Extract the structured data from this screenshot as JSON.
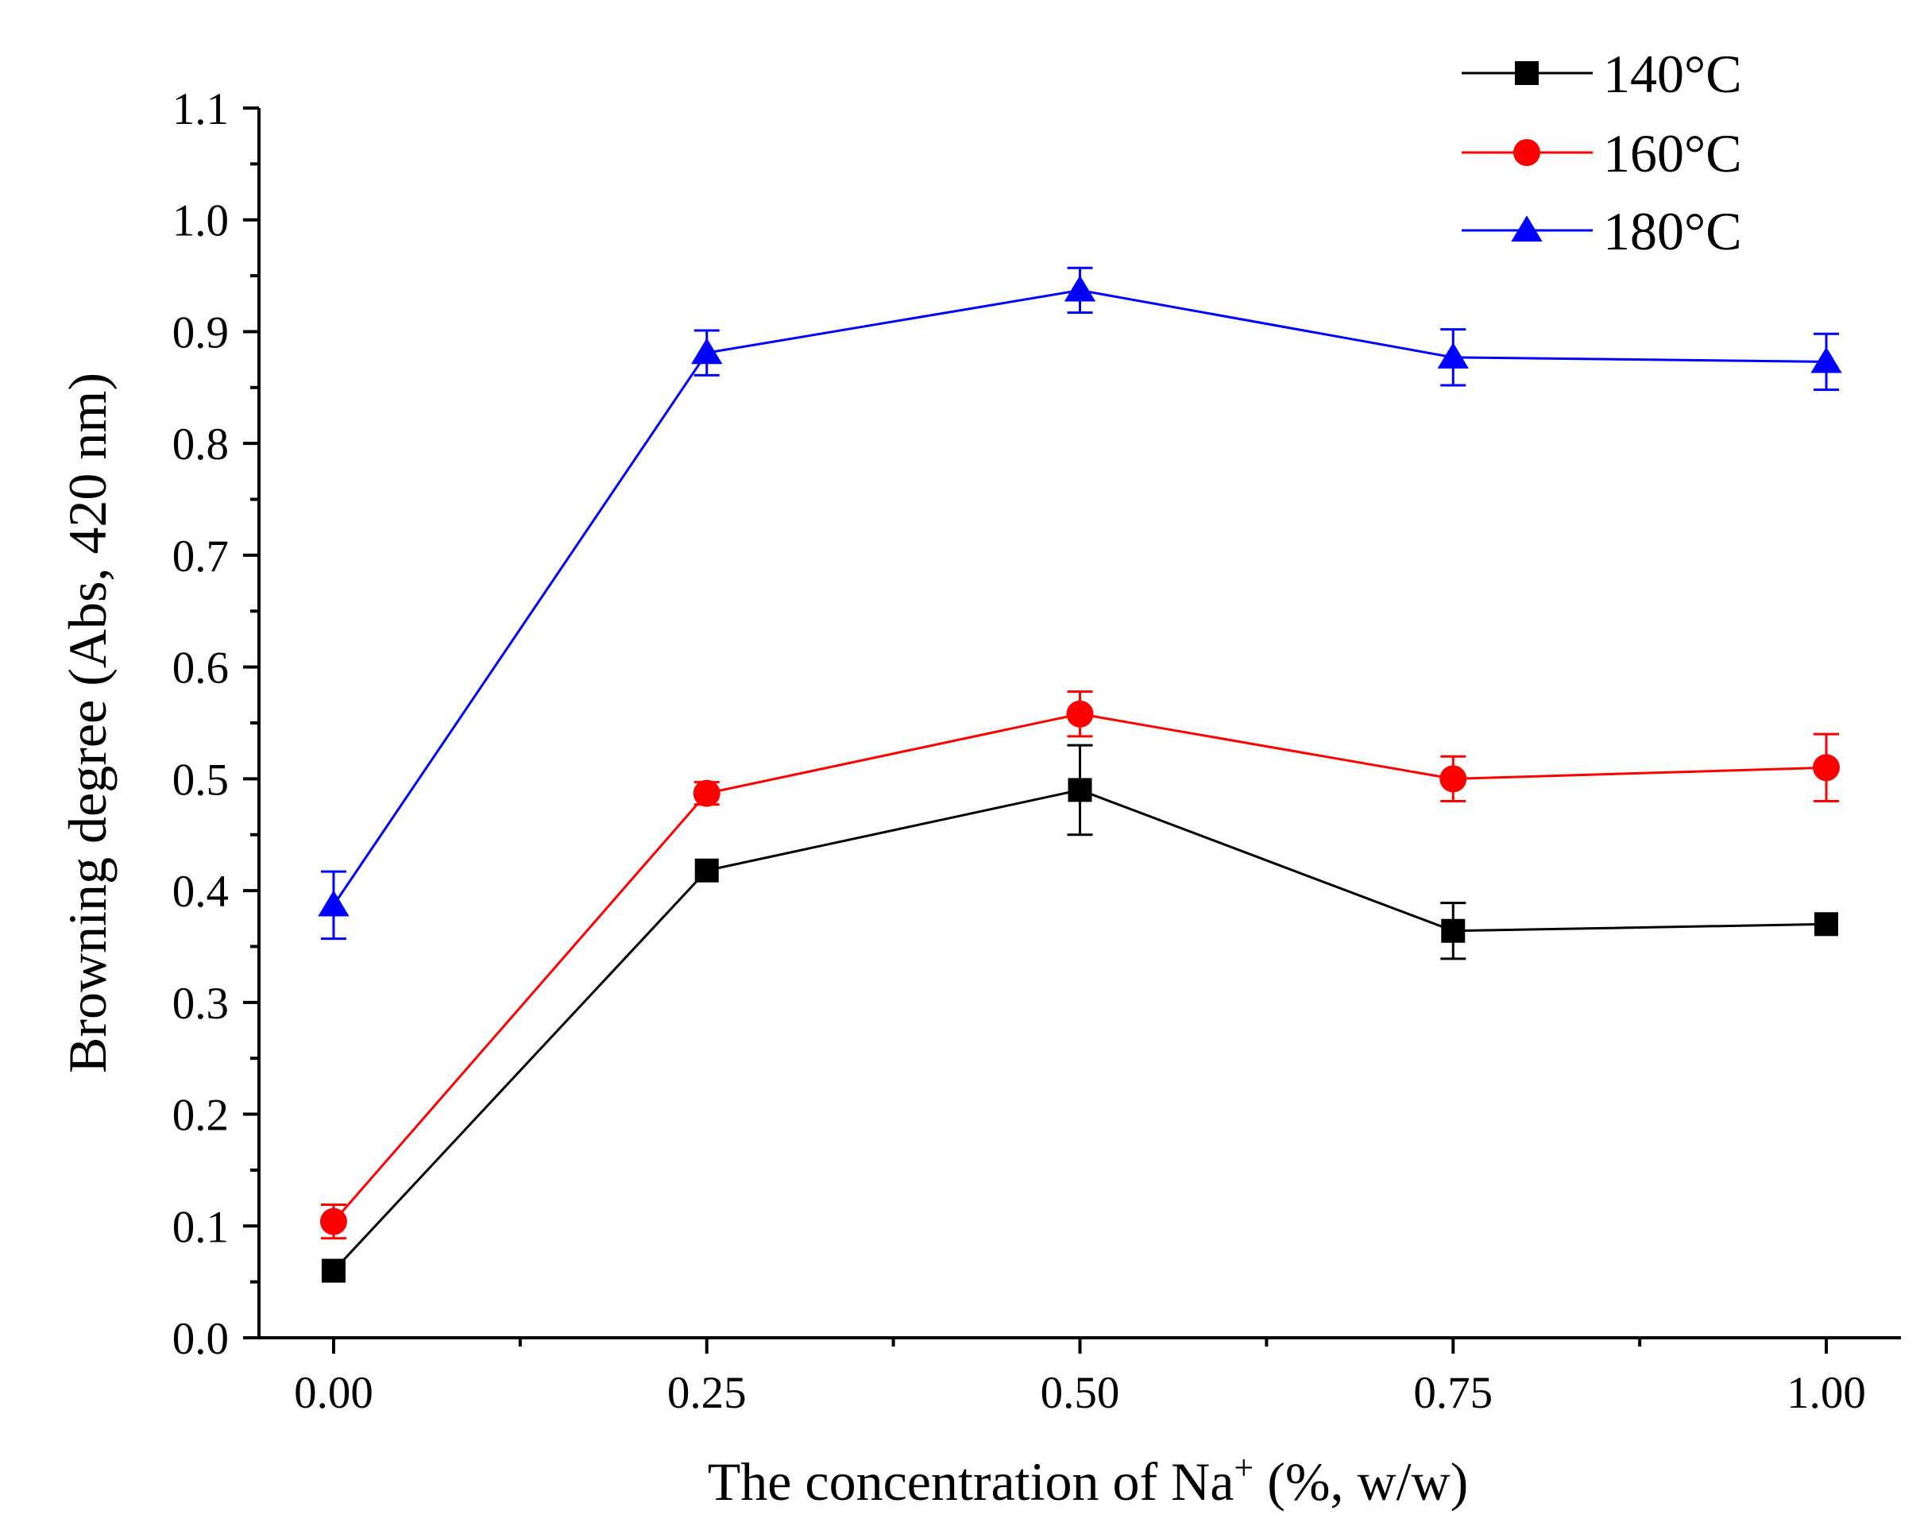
{
  "chart_data": {
    "type": "line",
    "title": "",
    "xlabel": "The concentration of Na⁺ (%, w/w)",
    "xlabel_main": "The concentration of Na",
    "xlabel_sup": "+",
    "xlabel_tail": " (%, w/w)",
    "ylabel": "Browning degree (Abs, 420 nm)",
    "x": [
      0.0,
      0.25,
      0.5,
      0.75,
      1.0
    ],
    "x_tick_labels": [
      "0.00",
      "0.25",
      "0.50",
      "0.75",
      "1.00"
    ],
    "y_tick_values": [
      0.0,
      0.1,
      0.2,
      0.3,
      0.4,
      0.5,
      0.6,
      0.7,
      0.8,
      0.9,
      1.0,
      1.1
    ],
    "y_tick_labels": [
      "0.0",
      "0.1",
      "0.2",
      "0.3",
      "0.4",
      "0.5",
      "0.6",
      "0.7",
      "0.8",
      "0.9",
      "1.0",
      "1.1"
    ],
    "xlim": [
      -0.05,
      1.05
    ],
    "ylim": [
      0.0,
      1.1
    ],
    "grid": false,
    "legend_position": "top-right",
    "series": [
      {
        "name": "140°C",
        "color": "#000000",
        "marker": "square",
        "values": [
          0.06,
          0.418,
          0.49,
          0.364,
          0.37
        ],
        "errors": [
          0.0,
          0.0,
          0.04,
          0.025,
          0.0
        ]
      },
      {
        "name": "160°C",
        "color": "#ff0000",
        "marker": "circle",
        "values": [
          0.104,
          0.487,
          0.558,
          0.5,
          0.51
        ],
        "errors": [
          0.015,
          0.01,
          0.02,
          0.02,
          0.03
        ]
      },
      {
        "name": "180°C",
        "color": "#0000ff",
        "marker": "triangle",
        "values": [
          0.387,
          0.881,
          0.937,
          0.877,
          0.873
        ],
        "errors": [
          0.03,
          0.02,
          0.02,
          0.025,
          0.025
        ]
      }
    ]
  }
}
